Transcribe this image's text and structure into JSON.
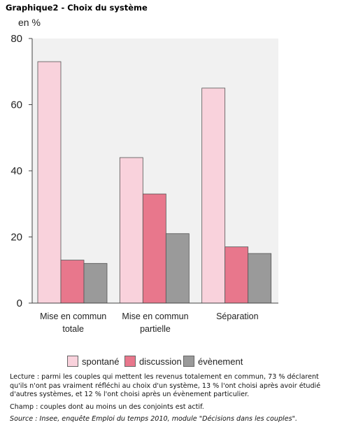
{
  "title": "Graphique2 - Choix du système",
  "chart_data": {
    "type": "bar",
    "ylabel": "en %",
    "ylim": [
      0,
      80
    ],
    "yticks": [
      0,
      20,
      40,
      60,
      80
    ],
    "categories": [
      [
        "Mise en commun",
        "totale"
      ],
      [
        "Mise en commun",
        "partielle"
      ],
      [
        "Séparation"
      ]
    ],
    "series": [
      {
        "name": "spontané",
        "color": "#f9d2dc",
        "values": [
          73,
          44,
          65
        ]
      },
      {
        "name": "discussion",
        "color": "#e8778c",
        "values": [
          13,
          33,
          17
        ]
      },
      {
        "name": "évènement",
        "color": "#9a9a9a",
        "values": [
          12,
          21,
          15
        ]
      }
    ],
    "grid": false,
    "legend_position": "bottom"
  },
  "notes": {
    "lecture": "Lecture : parmi les couples qui mettent les revenus totalement en commun, 73 % déclarent qu'ils n'ont pas vraiment réfléchi au choix d'un système, 13 % l'ont choisi après avoir étudié d'autres systèmes, et 12 % l'ont choisi après un évènement particulier.",
    "champ": "Champ : couples dont au moins un des conjoints est actif.",
    "source": "Source : Insee, enquête Emploi du temps 2010, module \"Décisions dans les couples\"."
  }
}
